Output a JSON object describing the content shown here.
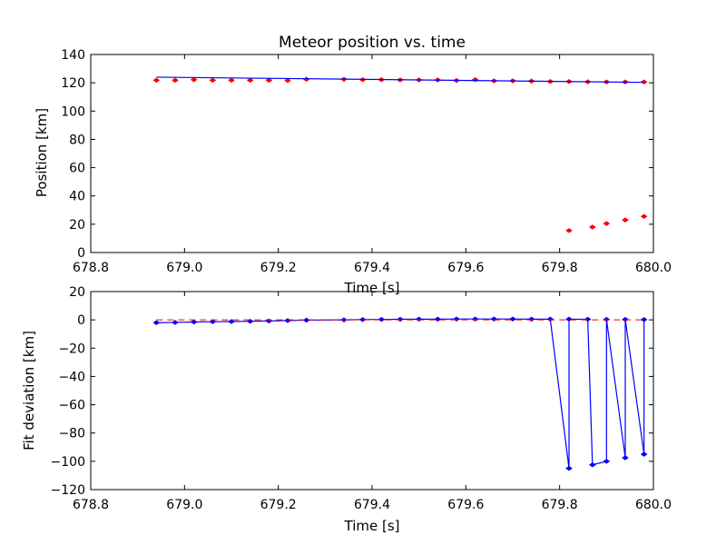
{
  "chart_data": [
    {
      "type": "scatter",
      "title": "Meteor position vs. time",
      "xlabel": "Time [s]",
      "ylabel": "Position [km]",
      "xlim": [
        678.8,
        680.0
      ],
      "ylim": [
        0,
        140
      ],
      "xticks": [
        678.8,
        679.0,
        679.2,
        679.4,
        679.6,
        679.8,
        680.0
      ],
      "yticks": [
        0,
        20,
        40,
        60,
        80,
        100,
        120,
        140
      ],
      "xtick_labels": [
        "678.8",
        "679.0",
        "679.2",
        "679.4",
        "679.6",
        "679.8",
        "680.0"
      ],
      "ytick_labels": [
        "0",
        "20",
        "40",
        "60",
        "80",
        "100",
        "120",
        "140"
      ],
      "grid": false,
      "series": [
        {
          "kind": "points",
          "color": "#ff0000",
          "x": [
            678.94,
            678.98,
            679.02,
            679.06,
            679.1,
            679.14,
            679.18,
            679.22,
            679.26,
            679.34,
            679.38,
            679.42,
            679.46,
            679.5,
            679.54,
            679.58,
            679.62,
            679.66,
            679.7,
            679.74,
            679.78,
            679.82,
            679.86,
            679.9,
            679.94,
            679.98,
            679.82,
            679.87,
            679.9,
            679.94,
            679.98
          ],
          "y": [
            121.8,
            121.8,
            122.2,
            121.8,
            121.8,
            121.8,
            121.8,
            121.6,
            122.5,
            122.5,
            122.2,
            122.2,
            122.0,
            122.0,
            122.0,
            121.6,
            122.2,
            121.4,
            121.4,
            121.2,
            120.9,
            120.9,
            120.7,
            120.6,
            120.6,
            120.6,
            15.5,
            18.0,
            20.5,
            23.0,
            25.5
          ]
        },
        {
          "kind": "fit-line",
          "color": "#0000ff",
          "x": [
            678.94,
            679.98
          ],
          "y": [
            124.0,
            120.3
          ]
        }
      ]
    },
    {
      "type": "line",
      "xlabel": "Time [s]",
      "ylabel": "Fit deviation [km]",
      "xlim": [
        678.8,
        680.0
      ],
      "ylim": [
        -120,
        20
      ],
      "xticks": [
        678.8,
        679.0,
        679.2,
        679.4,
        679.6,
        679.8,
        680.0
      ],
      "yticks": [
        -120,
        -100,
        -80,
        -60,
        -40,
        -20,
        0,
        20
      ],
      "xtick_labels": [
        "678.8",
        "679.0",
        "679.2",
        "679.4",
        "679.6",
        "679.8",
        "680.0"
      ],
      "ytick_labels": [
        "−120",
        "−100",
        "−80",
        "−60",
        "−40",
        "−20",
        "0",
        "20"
      ],
      "grid": false,
      "series": [
        {
          "kind": "deviation-line",
          "color": "#0000ff",
          "x": [
            678.94,
            678.98,
            679.02,
            679.06,
            679.1,
            679.14,
            679.18,
            679.22,
            679.26,
            679.34,
            679.38,
            679.42,
            679.46,
            679.5,
            679.54,
            679.58,
            679.62,
            679.66,
            679.7,
            679.74,
            679.78,
            679.82,
            679.82,
            679.86,
            679.87,
            679.9,
            679.9,
            679.94,
            679.94,
            679.98,
            679.98
          ],
          "y": [
            -2.0,
            -1.8,
            -1.5,
            -1.3,
            -1.2,
            -1.0,
            -0.8,
            -0.5,
            -0.2,
            0.0,
            0.2,
            0.3,
            0.4,
            0.5,
            0.5,
            0.6,
            0.6,
            0.6,
            0.6,
            0.5,
            0.5,
            -105.0,
            0.5,
            0.4,
            -102.5,
            -100.0,
            0.3,
            -97.5,
            0.3,
            -95.0,
            0.2
          ]
        },
        {
          "kind": "zero-reference",
          "color": "#ff0000",
          "dash": "dashed",
          "x": [
            678.94,
            679.98
          ],
          "y": [
            0,
            0
          ]
        }
      ]
    }
  ]
}
